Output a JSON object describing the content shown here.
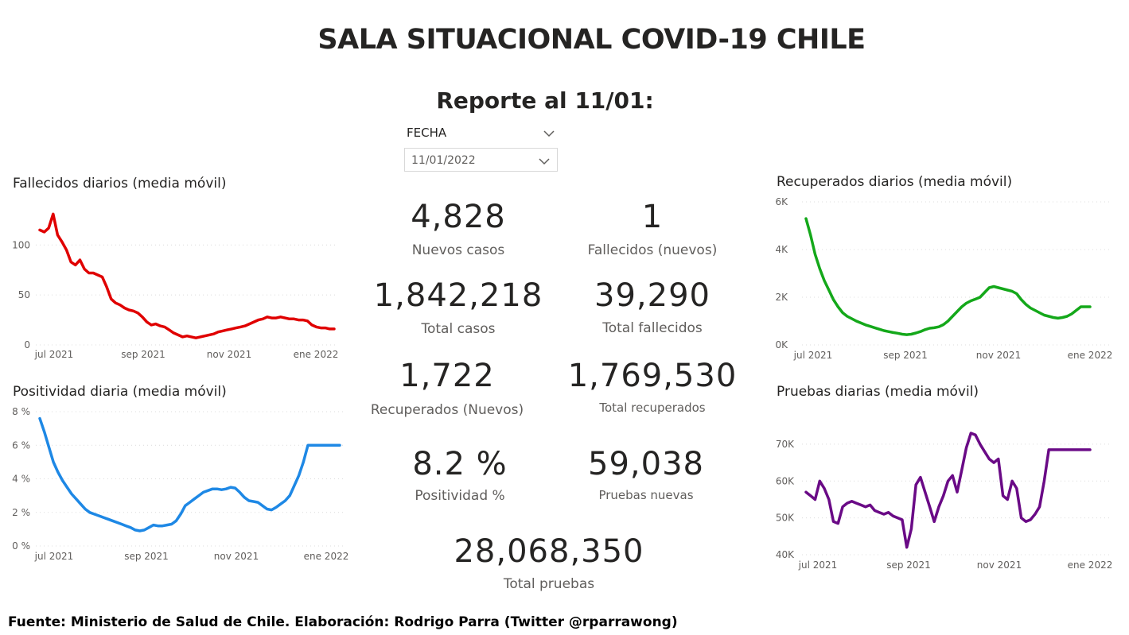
{
  "header": {
    "title": "SALA SITUACIONAL COVID-19 CHILE",
    "subtitle": "Reporte al 11/01:"
  },
  "slicer": {
    "label": "FECHA",
    "value": "11/01/2022"
  },
  "kpis": [
    {
      "value": "4,828",
      "label": "Nuevos casos"
    },
    {
      "value": "1",
      "label": "Fallecidos (nuevos)"
    },
    {
      "value": "1,842,218",
      "label": "Total casos"
    },
    {
      "value": "39,290",
      "label": "Total fallecidos"
    },
    {
      "value": "1,722",
      "label": "Recuperados (Nuevos)"
    },
    {
      "value": "1,769,530",
      "label": "Total recuperados"
    },
    {
      "value": "8.2 %",
      "label": "Positividad %"
    },
    {
      "value": "59,038",
      "label": "Pruebas nuevas"
    },
    {
      "value": "28,068,350",
      "label": "Total pruebas"
    }
  ],
  "footer": "Fuente: Ministerio de Salud de Chile. Elaboración: Rodrigo Parra (Twitter @rparrawong)",
  "chart_data": [
    {
      "id": "fallecidos",
      "type": "line",
      "title": "Fallecidos diarios (media móvil)",
      "color": "#e00000",
      "x_ticks": [
        "jul 2021",
        "sep 2021",
        "nov 2021",
        "ene 2022"
      ],
      "x_tick_pos": [
        0.07,
        0.6,
        1.62,
        2.63
      ],
      "y_ticks": [
        "0",
        "50",
        "100"
      ],
      "y_tick_values": [
        0,
        50,
        100
      ],
      "ylim": [
        0,
        140
      ],
      "xlim": [
        0,
        3.4
      ],
      "x": [
        0.0,
        0.05,
        0.1,
        0.15,
        0.2,
        0.25,
        0.3,
        0.35,
        0.4,
        0.45,
        0.5,
        0.55,
        0.6,
        0.65,
        0.7,
        0.75,
        0.8,
        0.85,
        0.9,
        0.95,
        1.0,
        1.05,
        1.1,
        1.15,
        1.2,
        1.25,
        1.3,
        1.35,
        1.4,
        1.45,
        1.5,
        1.55,
        1.6,
        1.65,
        1.7,
        1.75,
        1.8,
        1.85,
        1.9,
        1.95,
        2.0,
        2.05,
        2.1,
        2.15,
        2.2,
        2.25,
        2.3,
        2.35,
        2.4,
        2.45,
        2.5,
        2.55,
        2.6,
        2.65,
        2.7,
        2.75,
        2.8,
        2.85,
        2.9,
        2.95,
        3.0,
        3.05,
        3.1,
        3.15,
        3.2,
        3.25,
        3.3
      ],
      "y": [
        115,
        113,
        117,
        131,
        110,
        103,
        95,
        83,
        80,
        85,
        76,
        72,
        72,
        70,
        68,
        58,
        46,
        42,
        40,
        37,
        35,
        34,
        32,
        28,
        23,
        20,
        21,
        19,
        18,
        15,
        12,
        10,
        8,
        9,
        8,
        7,
        8,
        9,
        10,
        11,
        13,
        14,
        15,
        16,
        17,
        18,
        19,
        21,
        23,
        25,
        26,
        28,
        27,
        27,
        28,
        27,
        26,
        26,
        25,
        25,
        24,
        20,
        18,
        17,
        17,
        16,
        16
      ]
    },
    {
      "id": "positividad",
      "type": "line",
      "title": "Positividad diaria (media móvil)",
      "color": "#1e88e5",
      "x_ticks": [
        "jul 2021",
        "sep 2021",
        "nov 2021",
        "ene 2022"
      ],
      "y_ticks": [
        "0 %",
        "2 %",
        "4 %",
        "6 %",
        "8 %"
      ],
      "y_tick_values": [
        0,
        2,
        4,
        6,
        8
      ],
      "ylim": [
        0,
        8
      ],
      "x": [
        0.0,
        0.05,
        0.1,
        0.15,
        0.2,
        0.25,
        0.3,
        0.35,
        0.4,
        0.45,
        0.5,
        0.55,
        0.6,
        0.65,
        0.7,
        0.75,
        0.8,
        0.85,
        0.9,
        0.95,
        1.0,
        1.05,
        1.1,
        1.15,
        1.2,
        1.25,
        1.3,
        1.35,
        1.4,
        1.45,
        1.5,
        1.55,
        1.6,
        1.65,
        1.7,
        1.75,
        1.8,
        1.85,
        1.9,
        1.95,
        2.0,
        2.05,
        2.1,
        2.15,
        2.2,
        2.25,
        2.3,
        2.35,
        2.4,
        2.45,
        2.5,
        2.55,
        2.6,
        2.65,
        2.7,
        2.75,
        2.8,
        2.85,
        2.9,
        2.95,
        3.0,
        3.05,
        3.1,
        3.15,
        3.2,
        3.25,
        3.3
      ],
      "y": [
        7.6,
        6.8,
        5.9,
        5.0,
        4.4,
        3.9,
        3.5,
        3.1,
        2.8,
        2.5,
        2.2,
        2.0,
        1.9,
        1.8,
        1.7,
        1.6,
        1.5,
        1.4,
        1.3,
        1.2,
        1.1,
        0.95,
        0.9,
        0.95,
        1.1,
        1.25,
        1.2,
        1.2,
        1.25,
        1.3,
        1.5,
        1.9,
        2.4,
        2.6,
        2.8,
        3.0,
        3.2,
        3.3,
        3.4,
        3.4,
        3.35,
        3.4,
        3.5,
        3.45,
        3.2,
        2.9,
        2.7,
        2.65,
        2.6,
        2.4,
        2.2,
        2.15,
        2.3,
        2.5,
        2.7,
        3.0,
        3.6,
        4.2,
        5.0,
        6.0,
        6.0,
        6.0,
        6.0,
        6.0,
        6.0,
        6.0,
        6.0
      ]
    },
    {
      "id": "recuperados",
      "type": "line",
      "title": "Recuperados diarios (media móvil)",
      "color": "#14a81a",
      "x_ticks": [
        "jul 2021",
        "sep 2021",
        "nov 2021",
        "ene 2022"
      ],
      "y_ticks": [
        "0K",
        "2K",
        "4K",
        "6K"
      ],
      "y_tick_values": [
        0,
        2000,
        4000,
        6000
      ],
      "ylim": [
        0,
        6000
      ],
      "x": [
        0.0,
        0.05,
        0.1,
        0.15,
        0.2,
        0.25,
        0.3,
        0.35,
        0.4,
        0.45,
        0.5,
        0.55,
        0.6,
        0.65,
        0.7,
        0.75,
        0.8,
        0.85,
        0.9,
        0.95,
        1.0,
        1.05,
        1.1,
        1.15,
        1.2,
        1.25,
        1.3,
        1.35,
        1.4,
        1.45,
        1.5,
        1.55,
        1.6,
        1.65,
        1.7,
        1.75,
        1.8,
        1.85,
        1.9,
        1.95,
        2.0,
        2.05,
        2.1,
        2.15,
        2.2,
        2.25,
        2.3,
        2.35,
        2.4,
        2.45,
        2.5,
        2.55,
        2.6,
        2.65,
        2.7,
        2.75,
        2.8,
        2.85,
        2.9,
        2.95,
        3.0,
        3.05,
        3.1
      ],
      "y": [
        5300,
        4600,
        3800,
        3200,
        2700,
        2300,
        1900,
        1600,
        1350,
        1200,
        1100,
        1000,
        920,
        840,
        780,
        720,
        660,
        600,
        560,
        520,
        490,
        450,
        430,
        450,
        500,
        560,
        640,
        700,
        720,
        760,
        850,
        1000,
        1200,
        1400,
        1600,
        1750,
        1850,
        1920,
        2000,
        2200,
        2400,
        2450,
        2400,
        2350,
        2300,
        2250,
        2150,
        1900,
        1700,
        1550,
        1450,
        1350,
        1250,
        1200,
        1150,
        1120,
        1150,
        1200,
        1300,
        1450,
        1600,
        1600,
        1600
      ]
    },
    {
      "id": "pruebas",
      "type": "line",
      "title": "Pruebas diarias (media móvil)",
      "color": "#6a0a86",
      "x_ticks": [
        "jul 2021",
        "sep 2021",
        "nov 2021",
        "ene 2022"
      ],
      "y_ticks": [
        "40K",
        "50K",
        "60K",
        "70K"
      ],
      "y_tick_values": [
        40000,
        50000,
        60000,
        70000
      ],
      "ylim": [
        40000,
        73000
      ],
      "x": [
        0.0,
        0.05,
        0.1,
        0.15,
        0.2,
        0.25,
        0.3,
        0.35,
        0.4,
        0.45,
        0.5,
        0.55,
        0.6,
        0.65,
        0.7,
        0.75,
        0.8,
        0.85,
        0.9,
        0.95,
        1.0,
        1.05,
        1.1,
        1.15,
        1.2,
        1.25,
        1.3,
        1.35,
        1.4,
        1.45,
        1.5,
        1.55,
        1.6,
        1.65,
        1.7,
        1.75,
        1.8,
        1.85,
        1.9,
        1.95,
        2.0,
        2.05,
        2.1,
        2.15,
        2.2,
        2.25,
        2.3,
        2.35,
        2.4,
        2.45,
        2.5,
        2.55,
        2.6,
        2.65,
        2.7,
        2.75,
        2.8,
        2.85,
        2.9,
        2.95,
        3.0,
        3.05,
        3.1
      ],
      "y": [
        57000,
        56000,
        55000,
        60000,
        58000,
        55000,
        49000,
        48500,
        53000,
        54000,
        54500,
        54000,
        53500,
        53000,
        53500,
        52000,
        51500,
        51000,
        51500,
        50500,
        50000,
        49500,
        42000,
        47000,
        59000,
        61000,
        57000,
        53000,
        49000,
        53000,
        56000,
        60000,
        61500,
        57000,
        63000,
        69000,
        73000,
        72500,
        70000,
        68000,
        66000,
        65000,
        66000,
        56000,
        55000,
        60000,
        58000,
        50000,
        49000,
        49500,
        51000,
        53000,
        60000,
        68500,
        68500,
        68500,
        68500,
        68500,
        68500,
        68500,
        68500,
        68500,
        68500
      ]
    }
  ]
}
